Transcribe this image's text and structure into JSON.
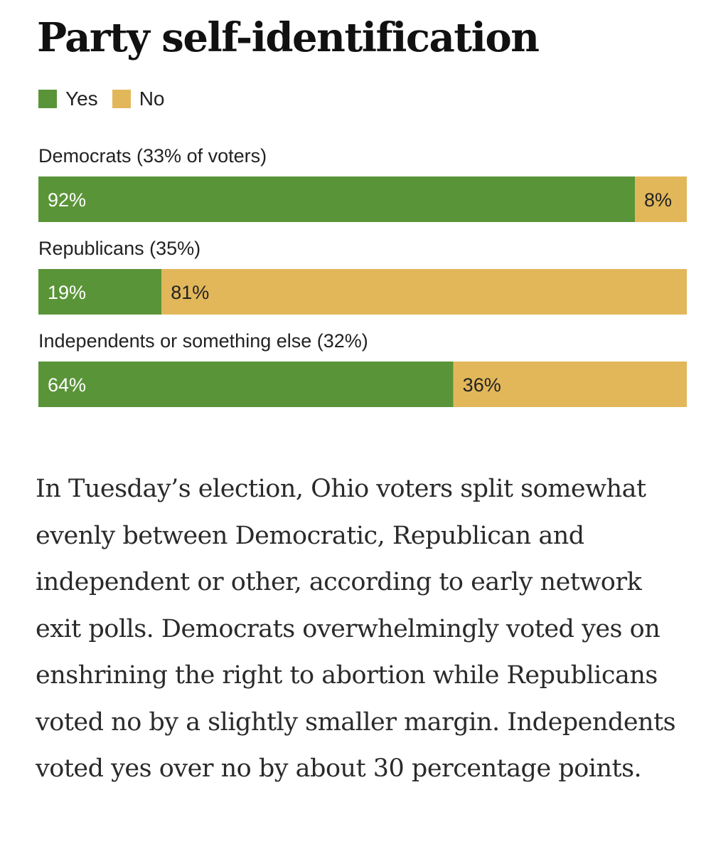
{
  "title": "Party self-identification",
  "legend": [
    {
      "label": "Yes",
      "color": "#5a9438"
    },
    {
      "label": "No",
      "color": "#e2b75a"
    }
  ],
  "chart_data": {
    "type": "bar",
    "orientation": "horizontal",
    "stacked": true,
    "title": "Party self-identification",
    "categories": [
      "Democrats (33% of voters)",
      "Republicans (35%)",
      "Independents or something else (32%)"
    ],
    "series": [
      {
        "name": "Yes",
        "color": "#5a9438",
        "values": [
          92,
          19,
          64
        ],
        "value_labels": [
          "92%",
          "19%",
          "64%"
        ],
        "label_color": "#ffffff"
      },
      {
        "name": "No",
        "color": "#e2b75a",
        "values": [
          8,
          81,
          36
        ],
        "value_labels": [
          "8%",
          "81%",
          "36%"
        ],
        "label_color": "#222222"
      }
    ],
    "xlim": [
      0,
      100
    ],
    "grid": false,
    "legend_position": "top-left"
  },
  "body": {
    "paragraph": "In Tuesday’s election, Ohio voters split somewhat evenly between Democratic, Republican and independent or other, according to early network exit polls. Democrats overwhelmingly voted yes on enshrining the right to abortion while Republicans voted no by a slightly smaller margin. Independents voted yes over no by about 30 percentage points."
  }
}
